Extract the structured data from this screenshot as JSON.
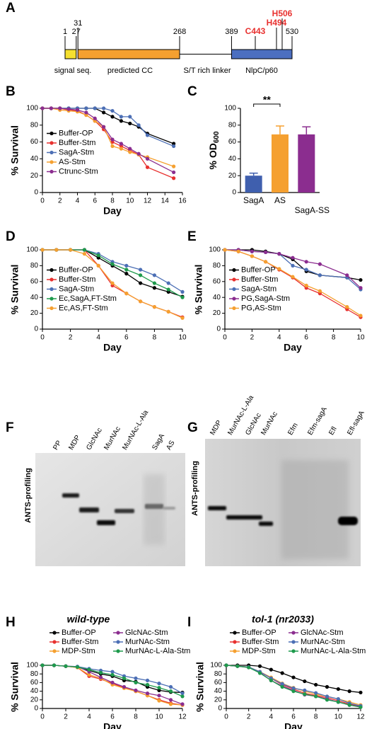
{
  "protein_diagram": {
    "panel": "A",
    "positions": [
      1,
      27,
      31,
      268,
      389,
      530
    ],
    "residues": [
      "C443",
      "H494",
      "H506"
    ],
    "domains": [
      "signal seq.",
      "predicted CC",
      "S/T rich linker",
      "NlpC/p60"
    ]
  },
  "chart_data": [
    {
      "type": "line",
      "panel": "B",
      "xlabel": "Day",
      "ylabel": "% Survival",
      "legend": "lower left",
      "x": [
        0,
        1,
        2,
        3,
        4,
        5,
        6,
        7,
        8,
        9,
        10,
        11,
        12,
        15
      ],
      "xlim": [
        0,
        16
      ],
      "xticks": [
        0,
        2,
        4,
        6,
        8,
        10,
        12,
        14,
        16
      ],
      "ylim": [
        0,
        100
      ],
      "yticks": [
        0,
        20,
        40,
        60,
        80,
        100
      ],
      "series": [
        {
          "name": "Buffer-OP",
          "color": "#000000",
          "values": [
            100,
            100,
            100,
            100,
            100,
            100,
            100,
            95,
            90,
            85,
            82,
            78,
            70,
            58
          ]
        },
        {
          "name": "Buffer-Stm",
          "color": "#e8312f",
          "values": [
            100,
            100,
            100,
            98,
            97,
            92,
            85,
            75,
            60,
            55,
            50,
            45,
            30,
            17
          ]
        },
        {
          "name": "SagA-Stm",
          "color": "#4c6fb5",
          "values": [
            100,
            100,
            100,
            100,
            100,
            100,
            100,
            100,
            97,
            90,
            90,
            80,
            68,
            55
          ]
        },
        {
          "name": "AS-Stm",
          "color": "#f5a030",
          "values": [
            100,
            100,
            98,
            97,
            96,
            92,
            85,
            78,
            55,
            52,
            48,
            45,
            42,
            31
          ]
        },
        {
          "name": "Ctrunc-Stm",
          "color": "#8b2d8f",
          "values": [
            100,
            100,
            100,
            99,
            98,
            95,
            88,
            78,
            63,
            58,
            52,
            46,
            40,
            24
          ]
        }
      ]
    },
    {
      "type": "bar",
      "panel": "C",
      "ylabel": "% OD",
      "ylabel_subscript": "600",
      "annotation": "**",
      "categories": [
        "SagA",
        "AS",
        "SagA-SS"
      ],
      "values": [
        20,
        69,
        69
      ],
      "errors": [
        3,
        10,
        9
      ],
      "colors": [
        "#3f5fae",
        "#f5a030",
        "#8b2d8f"
      ],
      "ylim": [
        0,
        100
      ],
      "yticks": [
        0,
        20,
        40,
        60,
        80,
        100
      ]
    },
    {
      "type": "line",
      "panel": "D",
      "xlabel": "Day",
      "ylabel": "% Survival",
      "legend": "lower left",
      "x": [
        0,
        1,
        2,
        3,
        4,
        5,
        6,
        7,
        8,
        9,
        10
      ],
      "xlim": [
        0,
        10
      ],
      "xticks": [
        0,
        2,
        4,
        6,
        8,
        10
      ],
      "ylim": [
        0,
        100
      ],
      "yticks": [
        0,
        20,
        40,
        60,
        80,
        100
      ],
      "series": [
        {
          "name": "Buffer-OP",
          "color": "#000000",
          "values": [
            100,
            100,
            100,
            100,
            90,
            80,
            70,
            58,
            52,
            47,
            41
          ]
        },
        {
          "name": "Buffer-Stm",
          "color": "#e8312f",
          "values": [
            100,
            100,
            100,
            100,
            80,
            55,
            45,
            35,
            28,
            22,
            15
          ]
        },
        {
          "name": "SagA-Stm",
          "color": "#4c6fb5",
          "values": [
            100,
            100,
            100,
            100,
            95,
            85,
            80,
            75,
            68,
            58,
            47
          ]
        },
        {
          "name": "Ec,SagA,FT-Stm",
          "color": "#1e9a4c",
          "values": [
            100,
            100,
            100,
            100,
            93,
            82,
            75,
            68,
            58,
            50,
            40
          ]
        },
        {
          "name": "Ec,AS,FT-Stm",
          "color": "#f5a030",
          "values": [
            100,
            100,
            100,
            95,
            80,
            58,
            45,
            35,
            28,
            22,
            14
          ]
        }
      ]
    },
    {
      "type": "line",
      "panel": "E",
      "xlabel": "Day",
      "ylabel": "% Survival",
      "legend": "lower left",
      "x": [
        0,
        1,
        2,
        3,
        4,
        5,
        6,
        7,
        9,
        10
      ],
      "xlim": [
        0,
        10
      ],
      "xticks": [
        0,
        2,
        4,
        6,
        8,
        10
      ],
      "ylim": [
        0,
        100
      ],
      "yticks": [
        0,
        20,
        40,
        60,
        80,
        100
      ],
      "series": [
        {
          "name": "Buffer-OP",
          "color": "#000000",
          "values": [
            100,
            100,
            100,
            98,
            95,
            88,
            73,
            68,
            65,
            62
          ]
        },
        {
          "name": "Buffer-Stm",
          "color": "#e8312f",
          "values": [
            100,
            98,
            92,
            85,
            75,
            65,
            52,
            45,
            25,
            15
          ]
        },
        {
          "name": "SagA-Stm",
          "color": "#4c6fb5",
          "values": [
            100,
            100,
            98,
            97,
            95,
            80,
            75,
            68,
            65,
            50
          ]
        },
        {
          "name": "PG,SagA-Stm",
          "color": "#8b2d8f",
          "values": [
            100,
            100,
            98,
            97,
            95,
            90,
            85,
            82,
            68,
            52
          ]
        },
        {
          "name": "PG,AS-Stm",
          "color": "#f5a030",
          "values": [
            100,
            98,
            92,
            85,
            76,
            66,
            55,
            48,
            28,
            17
          ]
        }
      ]
    },
    {
      "type": "line",
      "panel": "H",
      "title": "wild-type",
      "xlabel": "Day",
      "ylabel": "% Survival",
      "legend": "upper center",
      "x": [
        0,
        1,
        2,
        3,
        4,
        5,
        6,
        7,
        8,
        9,
        10,
        11,
        12
      ],
      "xlim": [
        0,
        12
      ],
      "xticks": [
        0,
        2,
        4,
        6,
        8,
        10,
        12
      ],
      "ylim": [
        0,
        100
      ],
      "yticks": [
        0,
        20,
        40,
        60,
        80,
        100
      ],
      "series": [
        {
          "name": "Buffer-OP",
          "color": "#000000",
          "values": [
            100,
            100,
            98,
            96,
            88,
            80,
            75,
            65,
            62,
            50,
            42,
            38,
            37
          ]
        },
        {
          "name": "Buffer-Stm",
          "color": "#e8312f",
          "values": [
            100,
            100,
            98,
            95,
            75,
            68,
            58,
            48,
            40,
            30,
            20,
            12,
            8
          ]
        },
        {
          "name": "MDP-Stm",
          "color": "#f5a030",
          "values": [
            100,
            100,
            98,
            95,
            78,
            70,
            55,
            47,
            40,
            30,
            18,
            10,
            8
          ]
        },
        {
          "name": "GlcNAc-Stm",
          "color": "#8b2d8f",
          "values": [
            100,
            100,
            98,
            97,
            85,
            72,
            60,
            50,
            42,
            35,
            30,
            20,
            10
          ]
        },
        {
          "name": "MurNAc-Stm",
          "color": "#4c6fb5",
          "values": [
            100,
            100,
            98,
            97,
            92,
            88,
            85,
            75,
            70,
            65,
            58,
            50,
            35
          ]
        },
        {
          "name": "MurNAc-L-Ala-Stm",
          "color": "#1e9a4c",
          "values": [
            100,
            100,
            98,
            96,
            90,
            83,
            78,
            70,
            60,
            55,
            48,
            40,
            28
          ]
        }
      ]
    },
    {
      "type": "line",
      "panel": "I",
      "title": "tol-1 (nr2033)",
      "xlabel": "Day",
      "ylabel": "% Survival",
      "legend": "upper center",
      "x": [
        0,
        1,
        2,
        3,
        4,
        5,
        6,
        7,
        8,
        9,
        10,
        11,
        12
      ],
      "xlim": [
        0,
        12
      ],
      "xticks": [
        0,
        2,
        4,
        6,
        8,
        10,
        12
      ],
      "ylim": [
        0,
        100
      ],
      "yticks": [
        0,
        20,
        40,
        60,
        80,
        100
      ],
      "series": [
        {
          "name": "Buffer-OP",
          "color": "#000000",
          "values": [
            100,
            100,
            100,
            98,
            90,
            82,
            72,
            63,
            55,
            50,
            45,
            40,
            37
          ]
        },
        {
          "name": "Buffer-Stm",
          "color": "#e8312f",
          "values": [
            100,
            98,
            96,
            85,
            70,
            55,
            45,
            35,
            30,
            25,
            18,
            10,
            5
          ]
        },
        {
          "name": "MDP-Stm",
          "color": "#f5a030",
          "values": [
            100,
            98,
            96,
            85,
            72,
            58,
            48,
            40,
            33,
            28,
            22,
            15,
            8
          ]
        },
        {
          "name": "GlcNAc-Stm",
          "color": "#8b2d8f",
          "values": [
            100,
            98,
            95,
            83,
            65,
            52,
            42,
            32,
            28,
            22,
            15,
            8,
            4
          ]
        },
        {
          "name": "MurNAc-Stm",
          "color": "#4c6fb5",
          "values": [
            100,
            98,
            96,
            85,
            70,
            57,
            47,
            42,
            36,
            28,
            22,
            12,
            6
          ]
        },
        {
          "name": "MurNAc-L-Ala-Stm",
          "color": "#1e9a4c",
          "values": [
            100,
            98,
            95,
            82,
            65,
            50,
            40,
            33,
            28,
            20,
            15,
            8,
            3
          ]
        }
      ]
    }
  ],
  "gels": [
    {
      "panel": "F",
      "ylabel": "ANTS-profiling",
      "lanes": [
        "PP",
        "MDP",
        "GlcNAc",
        "MurNAc",
        "MurNAc-L-Ala",
        "SagA",
        "AS"
      ]
    },
    {
      "panel": "G",
      "ylabel": "ANTS-profiling",
      "lanes": [
        "MDP",
        "MurNAc-L-Ala",
        "GlcNAc",
        "MurNAc",
        "Efm",
        "Efm-sagA",
        "Efl",
        "Efl-sagA"
      ]
    }
  ]
}
